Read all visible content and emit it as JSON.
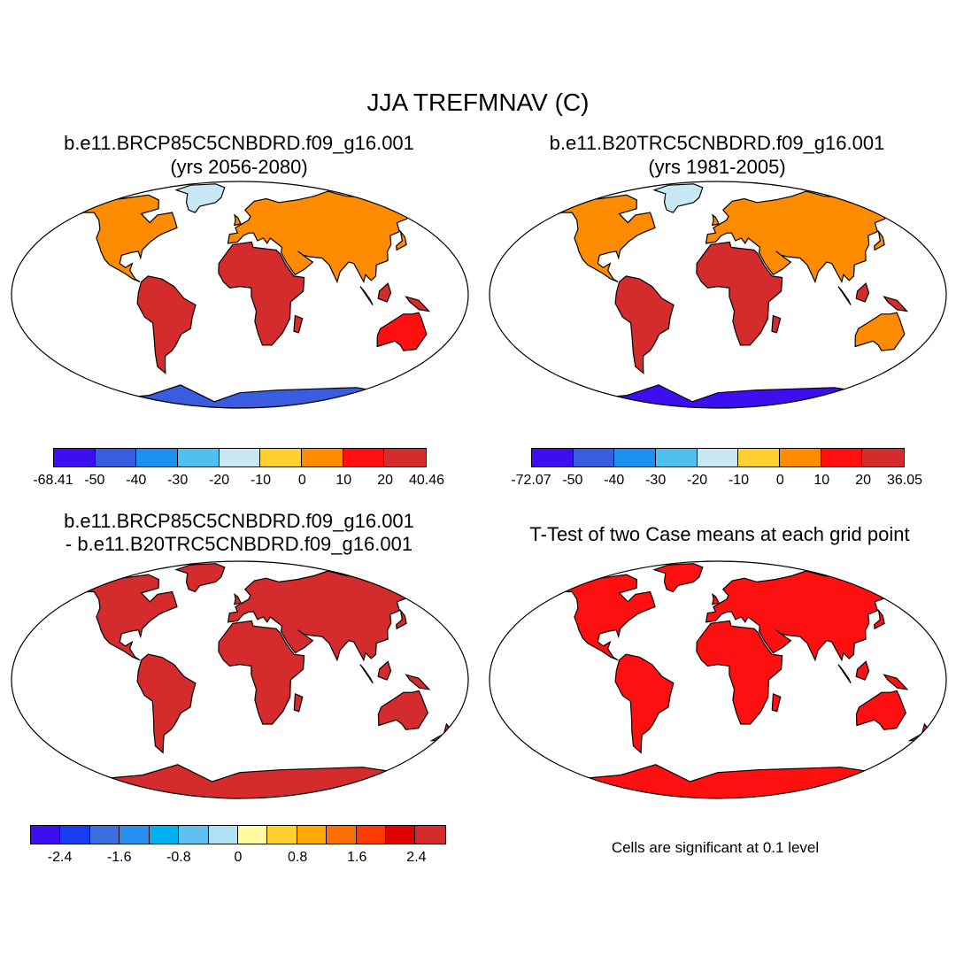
{
  "main_title": "JJA TREFMNAV (C)",
  "panels": [
    {
      "title_line1": "b.e11.BRCP85C5CNBDRD.f09_g16.001",
      "title_line2": "(yrs 2056-2080)",
      "palette": [
        "#3b0ff0",
        "#3a5ce0",
        "#1e90f0",
        "#50c0f0",
        "#c8e8f4",
        "#ffd030",
        "#ff8c00",
        "#ff1010",
        "#d42c2c"
      ],
      "labels": [
        "-68.41",
        "-50",
        "-40",
        "-30",
        "-20",
        "-10",
        "0",
        "10",
        "20",
        "40.46"
      ],
      "land_colors": {
        "north": "#ff8c00",
        "tropics": "#d42c2c",
        "south": "#ff1010",
        "antarctica": "#3a5ce0",
        "greenland": "#c8e8f4"
      }
    },
    {
      "title_line1": "b.e11.B20TRC5CNBDRD.f09_g16.001",
      "title_line2": "(yrs 1981-2005)",
      "palette": [
        "#3b0ff0",
        "#3a5ce0",
        "#1e90f0",
        "#50c0f0",
        "#c8e8f4",
        "#ffd030",
        "#ff8c00",
        "#ff1010",
        "#d42c2c"
      ],
      "labels": [
        "-72.07",
        "-50",
        "-40",
        "-30",
        "-20",
        "-10",
        "0",
        "10",
        "20",
        "36.05"
      ],
      "land_colors": {
        "north": "#ff8c00",
        "tropics": "#d42c2c",
        "south": "#ff8c00",
        "antarctica": "#3b0ff0",
        "greenland": "#c8e8f4"
      }
    },
    {
      "title_line1": "b.e11.BRCP85C5CNBDRD.f09_g16.001",
      "title_line2": "- b.e11.B20TRC5CNBDRD.f09_g16.001",
      "palette": [
        "#3b0ff0",
        "#1a3cf0",
        "#3a70e0",
        "#2890f0",
        "#00b0f0",
        "#60c0f0",
        "#b0e0f4",
        "#fffaa0",
        "#ffd030",
        "#ffa800",
        "#ff7000",
        "#ff3a00",
        "#e00000",
        "#d42c2c"
      ],
      "labels": [
        "-2.4",
        "-1.6",
        "-0.8",
        "0",
        "0.8",
        "1.6",
        "2.4"
      ],
      "land_colors": {
        "north": "#d42c2c",
        "tropics": "#d42c2c",
        "south": "#d42c2c",
        "antarctica": "#d42c2c",
        "greenland": "#d42c2c"
      }
    },
    {
      "title_line1": "T-Test of two Case means at each grid point",
      "note": "Cells are significant at 0.1 level",
      "land_colors": {
        "north": "#ff1010",
        "tropics": "#ff1010",
        "south": "#ff1010",
        "antarctica": "#ff1010",
        "greenland": "#ff1010"
      }
    }
  ]
}
